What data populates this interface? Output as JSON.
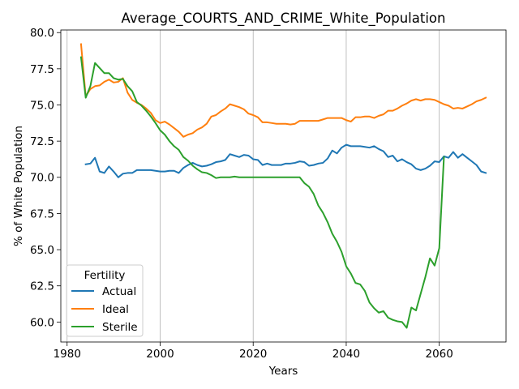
{
  "chart_data": {
    "type": "line",
    "title": "Average_COURTS_AND_CRIME_White_Population",
    "xlabel": "Years",
    "ylabel": "% of White Population",
    "xlim": [
      1978.65,
      2074.35
    ],
    "ylim": [
      58.62,
      80.18
    ],
    "xticks": [
      1980,
      2000,
      2020,
      2040,
      2060
    ],
    "xtick_labels": [
      "1980",
      "2000",
      "2020",
      "2040",
      "2060"
    ],
    "yticks": [
      60.0,
      62.5,
      65.0,
      67.5,
      70.0,
      72.5,
      75.0,
      77.5,
      80.0
    ],
    "ytick_labels": [
      "60.0",
      "62.5",
      "65.0",
      "67.5",
      "70.0",
      "72.5",
      "75.0",
      "77.5",
      "80.0"
    ],
    "grid": "vertical",
    "legend": {
      "title": "Fertility",
      "position": "lower-left"
    },
    "series": [
      {
        "name": "Actual",
        "color": "#1f77b4",
        "x": [
          1984,
          1985,
          1986,
          1987,
          1988,
          1989,
          1990,
          1991,
          1992,
          1993,
          1994,
          1995,
          1996,
          1997,
          1998,
          1999,
          2000,
          2001,
          2002,
          2003,
          2004,
          2005,
          2006,
          2007,
          2008,
          2009,
          2010,
          2011,
          2012,
          2013,
          2014,
          2015,
          2016,
          2017,
          2018,
          2019,
          2020,
          2021,
          2022,
          2023,
          2024,
          2025,
          2026,
          2027,
          2028,
          2029,
          2030,
          2031,
          2032,
          2033,
          2034,
          2035,
          2036,
          2037,
          2038,
          2039,
          2040,
          2041,
          2042,
          2043,
          2044,
          2045,
          2046,
          2047,
          2048,
          2049,
          2050,
          2051,
          2052,
          2053,
          2054,
          2055,
          2056,
          2057,
          2058,
          2059,
          2060,
          2061,
          2062,
          2063,
          2064,
          2065,
          2066,
          2067,
          2068,
          2069,
          2070
        ],
        "values": [
          70.9,
          70.95,
          71.35,
          70.4,
          70.3,
          70.75,
          70.4,
          70.0,
          70.25,
          70.3,
          70.3,
          70.5,
          70.5,
          70.5,
          70.5,
          70.45,
          70.4,
          70.4,
          70.45,
          70.45,
          70.3,
          70.65,
          70.85,
          71.0,
          70.85,
          70.75,
          70.8,
          70.9,
          71.05,
          71.1,
          71.2,
          71.6,
          71.5,
          71.4,
          71.55,
          71.5,
          71.25,
          71.2,
          70.85,
          70.95,
          70.85,
          70.85,
          70.85,
          70.95,
          70.95,
          71.0,
          71.1,
          71.05,
          70.8,
          70.85,
          70.95,
          71.0,
          71.3,
          71.85,
          71.65,
          72.05,
          72.25,
          72.15,
          72.15,
          72.15,
          72.1,
          72.05,
          72.15,
          71.95,
          71.8,
          71.4,
          71.5,
          71.1,
          71.25,
          71.05,
          70.9,
          70.6,
          70.5,
          70.6,
          70.8,
          71.1,
          71.05,
          71.45,
          71.35,
          71.75,
          71.35,
          71.6,
          71.35,
          71.1,
          70.85,
          70.4,
          70.3
        ]
      },
      {
        "name": "Ideal",
        "color": "#ff7f0e",
        "x": [
          1983,
          1984,
          1985,
          1986,
          1987,
          1988,
          1989,
          1990,
          1991,
          1992,
          1993,
          1994,
          1995,
          1996,
          1997,
          1998,
          1999,
          2000,
          2001,
          2002,
          2003,
          2004,
          2005,
          2006,
          2007,
          2008,
          2009,
          2010,
          2011,
          2012,
          2013,
          2014,
          2015,
          2016,
          2017,
          2018,
          2019,
          2020,
          2021,
          2022,
          2023,
          2024,
          2025,
          2026,
          2027,
          2028,
          2029,
          2030,
          2031,
          2032,
          2033,
          2034,
          2035,
          2036,
          2037,
          2038,
          2039,
          2040,
          2041,
          2042,
          2043,
          2044,
          2045,
          2046,
          2047,
          2048,
          2049,
          2050,
          2051,
          2052,
          2053,
          2054,
          2055,
          2056,
          2057,
          2058,
          2059,
          2060,
          2061,
          2062,
          2063,
          2064,
          2065,
          2066,
          2067,
          2068,
          2069,
          2070
        ],
        "values": [
          79.2,
          75.6,
          76.1,
          76.3,
          76.35,
          76.6,
          76.75,
          76.55,
          76.6,
          76.85,
          75.85,
          75.35,
          75.15,
          75.0,
          74.75,
          74.45,
          73.95,
          73.75,
          73.85,
          73.65,
          73.4,
          73.15,
          72.8,
          72.95,
          73.05,
          73.3,
          73.45,
          73.7,
          74.2,
          74.3,
          74.55,
          74.75,
          75.05,
          74.95,
          74.85,
          74.7,
          74.4,
          74.3,
          74.15,
          73.8,
          73.8,
          73.75,
          73.7,
          73.7,
          73.7,
          73.65,
          73.7,
          73.9,
          73.9,
          73.9,
          73.9,
          73.9,
          74.0,
          74.1,
          74.1,
          74.1,
          74.1,
          73.95,
          73.85,
          74.15,
          74.15,
          74.2,
          74.2,
          74.1,
          74.25,
          74.35,
          74.6,
          74.6,
          74.75,
          74.95,
          75.1,
          75.3,
          75.4,
          75.3,
          75.4,
          75.4,
          75.35,
          75.2,
          75.05,
          74.95,
          74.75,
          74.8,
          74.75,
          74.9,
          75.05,
          75.25,
          75.35,
          75.5
        ]
      },
      {
        "name": "Sterile",
        "color": "#2ca02c",
        "x": [
          1983,
          1984,
          1985,
          1986,
          1987,
          1988,
          1989,
          1990,
          1991,
          1992,
          1993,
          1994,
          1995,
          1996,
          1997,
          1998,
          1999,
          2000,
          2001,
          2002,
          2003,
          2004,
          2005,
          2006,
          2007,
          2008,
          2009,
          2010,
          2011,
          2012,
          2013,
          2014,
          2015,
          2016,
          2017,
          2018,
          2019,
          2020,
          2021,
          2022,
          2023,
          2024,
          2025,
          2026,
          2027,
          2028,
          2029,
          2030,
          2031,
          2032,
          2033,
          2034,
          2035,
          2036,
          2037,
          2038,
          2039,
          2040,
          2041,
          2042,
          2043,
          2044,
          2045,
          2046,
          2047,
          2048,
          2049,
          2050,
          2051,
          2052,
          2053,
          2054,
          2055,
          2056,
          2057,
          2058,
          2059,
          2060,
          2061
        ],
        "values": [
          78.3,
          75.5,
          76.3,
          77.9,
          77.55,
          77.2,
          77.2,
          76.85,
          76.75,
          76.8,
          76.3,
          75.95,
          75.2,
          74.95,
          74.6,
          74.2,
          73.75,
          73.25,
          72.95,
          72.5,
          72.15,
          71.9,
          71.4,
          71.15,
          70.8,
          70.55,
          70.35,
          70.3,
          70.15,
          69.95,
          70.0,
          70.0,
          70.0,
          70.05,
          70.0,
          70.0,
          70.0,
          70.0,
          70.0,
          70.0,
          70.0,
          70.0,
          70.0,
          70.0,
          70.0,
          70.0,
          70.0,
          70.0,
          69.6,
          69.35,
          68.85,
          68.05,
          67.55,
          66.9,
          66.1,
          65.55,
          64.85,
          63.85,
          63.35,
          62.7,
          62.6,
          62.15,
          61.35,
          60.95,
          60.65,
          60.75,
          60.3,
          60.15,
          60.05,
          60.0,
          59.6,
          61.0,
          60.8,
          61.95,
          63.1,
          64.4,
          63.9,
          65.1,
          71.4
        ]
      }
    ]
  }
}
